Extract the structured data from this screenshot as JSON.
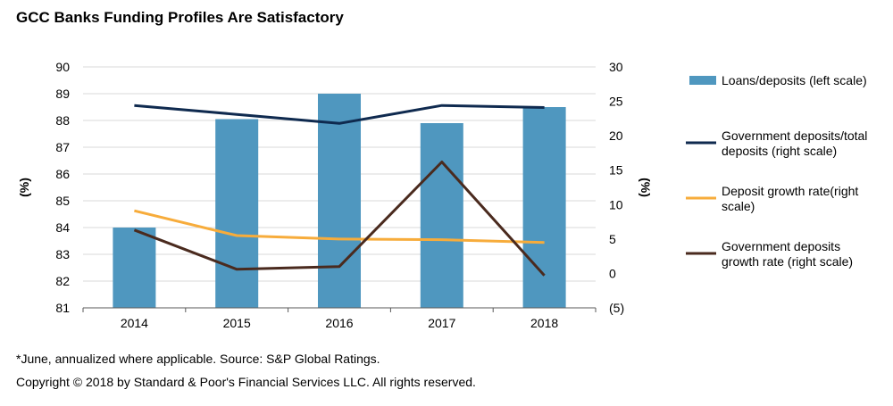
{
  "title": "GCC Banks Funding Profiles Are Satisfactory",
  "footnotes": {
    "source": "*June, annualized where applicable. Source: S&P Global Ratings.",
    "copyright": "Copyright © 2018 by Standard & Poor's Financial Services LLC. All rights reserved."
  },
  "colors": {
    "bars": "#4f97bf",
    "gov_deposits_total": "#0f2a4f",
    "deposit_growth": "#f7ac3b",
    "gov_deposit_growth": "#4a2a1e"
  },
  "chart_data": {
    "type": "bar",
    "title": "GCC Banks Funding Profiles Are Satisfactory",
    "categories": [
      "2014",
      "2015",
      "2016",
      "2017",
      "2018"
    ],
    "left_axis": {
      "label": "(%)",
      "ylim": [
        81,
        90
      ],
      "ticks": [
        "81",
        "82",
        "83",
        "84",
        "85",
        "86",
        "87",
        "88",
        "89",
        "90"
      ]
    },
    "right_axis": {
      "label": "(%)",
      "ylim": [
        -5,
        30
      ],
      "ticks": [
        "(5)",
        "0",
        "5",
        "10",
        "15",
        "20",
        "25",
        "30"
      ]
    },
    "series": [
      {
        "name": "Loans/deposits (left scale)",
        "type": "bar",
        "axis": "left",
        "values": [
          84.0,
          88.05,
          89.0,
          87.9,
          88.5
        ]
      },
      {
        "name": "Government deposits/total deposits (right scale)",
        "type": "line",
        "axis": "right",
        "values": [
          24.4,
          23.1,
          21.8,
          24.4,
          24.1
        ]
      },
      {
        "name": "Deposit growth rate(right scale)",
        "type": "line",
        "axis": "right",
        "values": [
          9.1,
          5.5,
          5.0,
          4.9,
          4.5
        ]
      },
      {
        "name": "Government deposits growth rate (right scale)",
        "type": "line",
        "axis": "right",
        "values": [
          6.3,
          0.6,
          1.0,
          16.2,
          -0.3
        ]
      }
    ],
    "legend": {
      "position": "right",
      "entries": [
        [
          "Loans/deposits (left scale)"
        ],
        [
          "Government deposits/total",
          "deposits (right scale)"
        ],
        [
          "Deposit growth rate(right",
          "scale)"
        ],
        [
          "Government deposits",
          "growth rate (right scale)"
        ]
      ]
    }
  }
}
